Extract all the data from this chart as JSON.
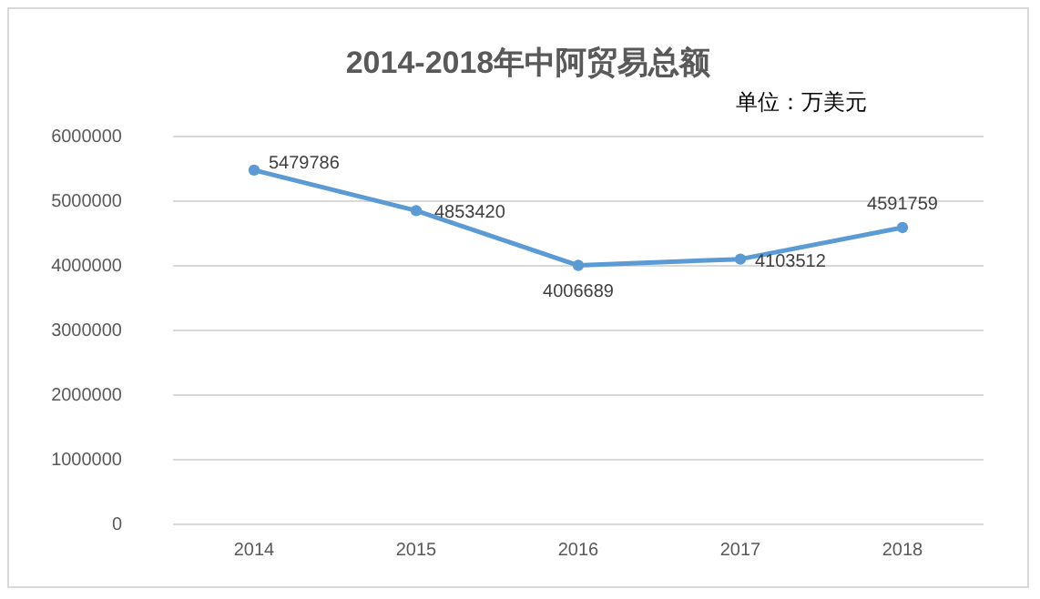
{
  "chart_data": {
    "type": "line",
    "title": "2014-2018年中阿贸易总额",
    "subtitle": "单位：万美元",
    "categories": [
      "2014",
      "2015",
      "2016",
      "2017",
      "2018"
    ],
    "series": [
      {
        "color": "#5b9bd5",
        "values": [
          5479786,
          4853420,
          4006689,
          4103512,
          4591759
        ]
      }
    ],
    "ylim": [
      0,
      6000000
    ],
    "yticks": [
      0,
      1000000,
      2000000,
      3000000,
      4000000,
      5000000,
      6000000
    ],
    "grid": "y",
    "marker": "circle",
    "line_style": "solid",
    "data_labels": true
  }
}
